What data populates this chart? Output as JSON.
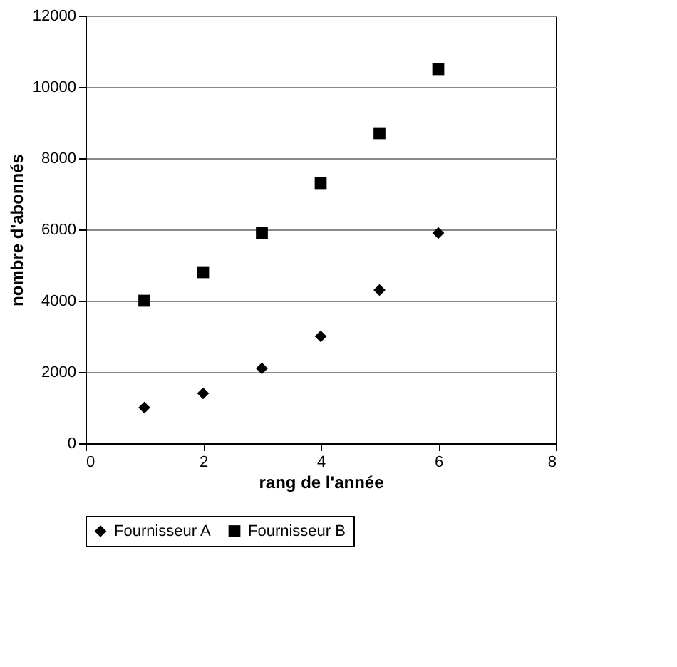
{
  "chart_data": {
    "type": "scatter",
    "xlabel": "rang de l'année",
    "ylabel": "nombre d'abonnés",
    "x": [
      1,
      2,
      3,
      4,
      5,
      6
    ],
    "series": [
      {
        "name": "Fournisseur A",
        "color": "#000000",
        "marker": "diamond",
        "values": [
          1000,
          1400,
          2100,
          3000,
          4300,
          5900
        ]
      },
      {
        "name": "Fournisseur B",
        "color": "#000000",
        "marker": "square",
        "values": [
          4000,
          4800,
          5900,
          7300,
          8700,
          10500
        ]
      }
    ],
    "xlim": [
      0,
      8
    ],
    "xticks": [
      0,
      2,
      4,
      6,
      8
    ],
    "ylim": [
      0,
      12000
    ],
    "yticks": [
      0,
      2000,
      4000,
      6000,
      8000,
      10000,
      12000
    ],
    "grid": "y",
    "legend": "bottom"
  }
}
